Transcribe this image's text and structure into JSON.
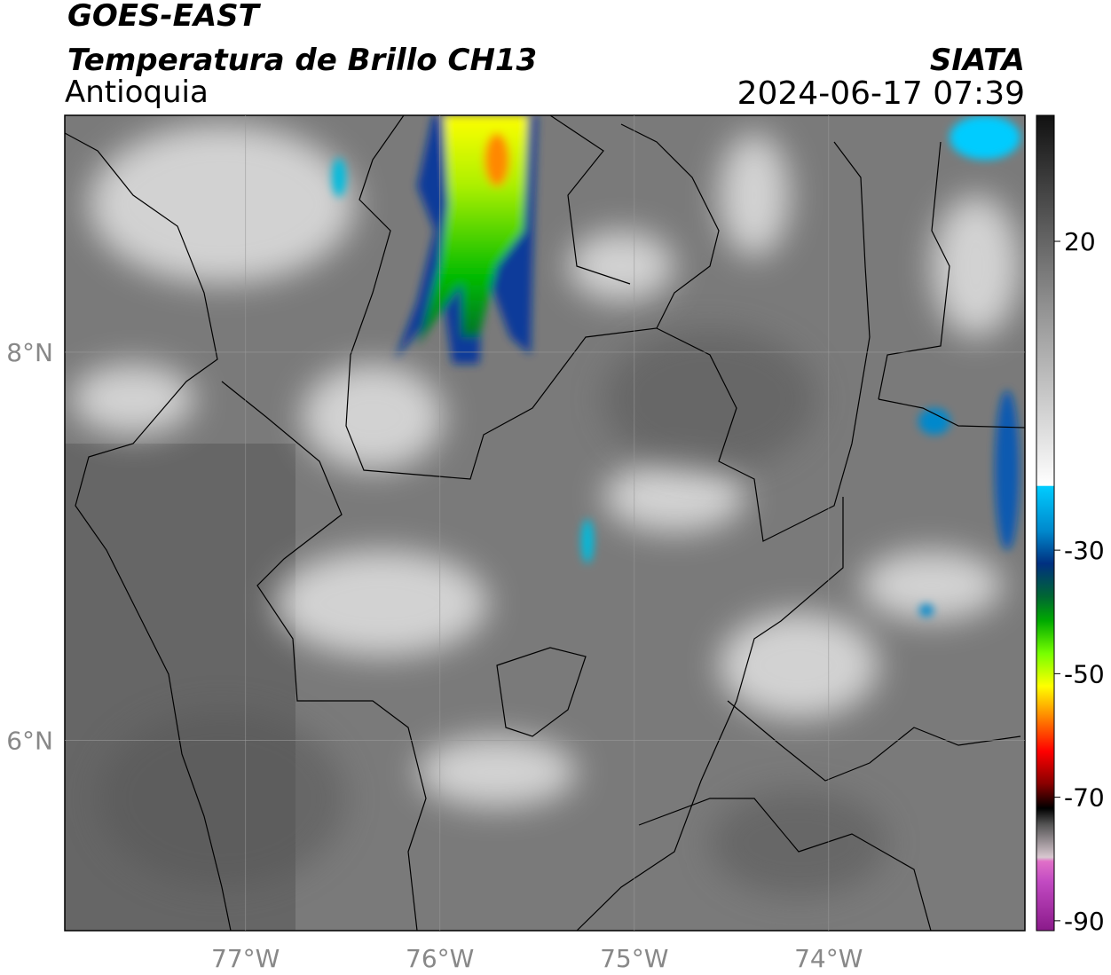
{
  "header": {
    "title": "GOES-EAST",
    "subtitle": "Temperatura de Brillo CH13",
    "region": "Antioquia",
    "source": "SIATA",
    "timestamp": "2024-06-17 07:39"
  },
  "map": {
    "xlim": [
      -77.93,
      -72.99
    ],
    "ylim": [
      5.02,
      9.22
    ],
    "xticks": [
      {
        "value": -77,
        "label": "77°W"
      },
      {
        "value": -76,
        "label": "76°W"
      },
      {
        "value": -75,
        "label": "75°W"
      },
      {
        "value": -74,
        "label": "74°W"
      }
    ],
    "yticks": [
      {
        "value": 8,
        "label": "8°N"
      },
      {
        "value": 6,
        "label": "6°N"
      }
    ],
    "grid": true
  },
  "colorbar": {
    "lim": [
      -91.6,
      40.4
    ],
    "ticks": [
      20,
      -30,
      -50,
      -70,
      -90
    ]
  }
}
